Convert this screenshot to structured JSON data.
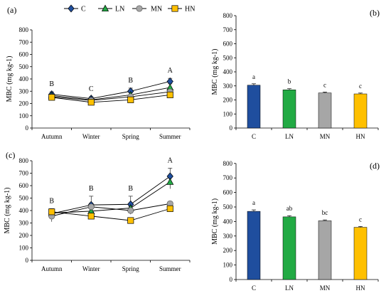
{
  "colors": {
    "C": "#1f4e9e",
    "LN": "#22aa44",
    "MN": "#a6a6a6",
    "HN": "#ffc000",
    "axis": "#000000",
    "line": "#000000",
    "error": "#000000"
  },
  "legend": [
    {
      "key": "C",
      "label": "C",
      "marker": "diamond"
    },
    {
      "key": "LN",
      "label": "LN",
      "marker": "triangle"
    },
    {
      "key": "MN",
      "label": "MN",
      "marker": "circle"
    },
    {
      "key": "HN",
      "label": "HN",
      "marker": "square"
    }
  ],
  "chart_data": [
    {
      "panel": "(a)",
      "type": "line",
      "ylabel": "MBC (mg kg-1)",
      "ylim": [
        0,
        800
      ],
      "yticks": [
        0,
        100,
        200,
        300,
        400,
        500,
        600,
        700,
        800
      ],
      "categories": [
        "Autumn",
        "Winter",
        "Spring",
        "Summer"
      ],
      "series": [
        {
          "name": "C",
          "key": "C",
          "values": [
            275,
            240,
            300,
            380
          ],
          "errors": [
            20,
            15,
            25,
            25
          ]
        },
        {
          "name": "LN",
          "key": "LN",
          "values": [
            265,
            230,
            270,
            330
          ],
          "errors": [
            15,
            15,
            20,
            30
          ]
        },
        {
          "name": "MN",
          "key": "MN",
          "values": [
            255,
            225,
            255,
            295
          ],
          "errors": [
            15,
            10,
            15,
            20
          ]
        },
        {
          "name": "HN",
          "key": "HN",
          "values": [
            250,
            210,
            230,
            270
          ],
          "errors": [
            15,
            10,
            15,
            15
          ]
        }
      ],
      "letters": [
        "B",
        "C",
        "B",
        "A"
      ]
    },
    {
      "panel": "(b)",
      "type": "bar",
      "ylabel": "MBC (mg kg-1)",
      "ylim": [
        0,
        800
      ],
      "yticks": [
        0,
        100,
        200,
        300,
        400,
        500,
        600,
        700,
        800
      ],
      "categories": [
        "C",
        "LN",
        "MN",
        "HN"
      ],
      "values": [
        305,
        272,
        250,
        243
      ],
      "errors": [
        10,
        8,
        6,
        6
      ],
      "letters": [
        "a",
        "b",
        "c",
        "c"
      ]
    },
    {
      "panel": "(c)",
      "type": "line",
      "ylabel": "MBC (mg kg-1)",
      "ylim": [
        0,
        800
      ],
      "yticks": [
        0,
        100,
        200,
        300,
        400,
        500,
        600,
        700,
        800
      ],
      "categories": [
        "Autumn",
        "Winter",
        "Spring",
        "Summer"
      ],
      "series": [
        {
          "name": "C",
          "key": "C",
          "values": [
            375,
            445,
            450,
            675
          ],
          "errors": [
            40,
            70,
            65,
            65
          ]
        },
        {
          "name": "LN",
          "key": "LN",
          "values": [
            380,
            395,
            420,
            630
          ],
          "errors": [
            30,
            40,
            40,
            55
          ]
        },
        {
          "name": "MN",
          "key": "MN",
          "values": [
            355,
            430,
            400,
            455
          ],
          "errors": [
            45,
            30,
            30,
            15
          ]
        },
        {
          "name": "HN",
          "key": "HN",
          "values": [
            390,
            355,
            320,
            415
          ],
          "errors": [
            25,
            20,
            20,
            15
          ]
        }
      ],
      "letters": [
        "B",
        "B",
        "B",
        "A"
      ]
    },
    {
      "panel": "(d)",
      "type": "bar",
      "ylabel": "MBC (mg kg-1)",
      "ylim": [
        0,
        800
      ],
      "yticks": [
        0,
        100,
        200,
        300,
        400,
        500,
        600,
        700,
        800
      ],
      "categories": [
        "C",
        "LN",
        "MN",
        "HN"
      ],
      "values": [
        470,
        432,
        405,
        360
      ],
      "errors": [
        10,
        8,
        6,
        6
      ],
      "letters": [
        "a",
        "ab",
        "bc",
        "c"
      ]
    }
  ]
}
